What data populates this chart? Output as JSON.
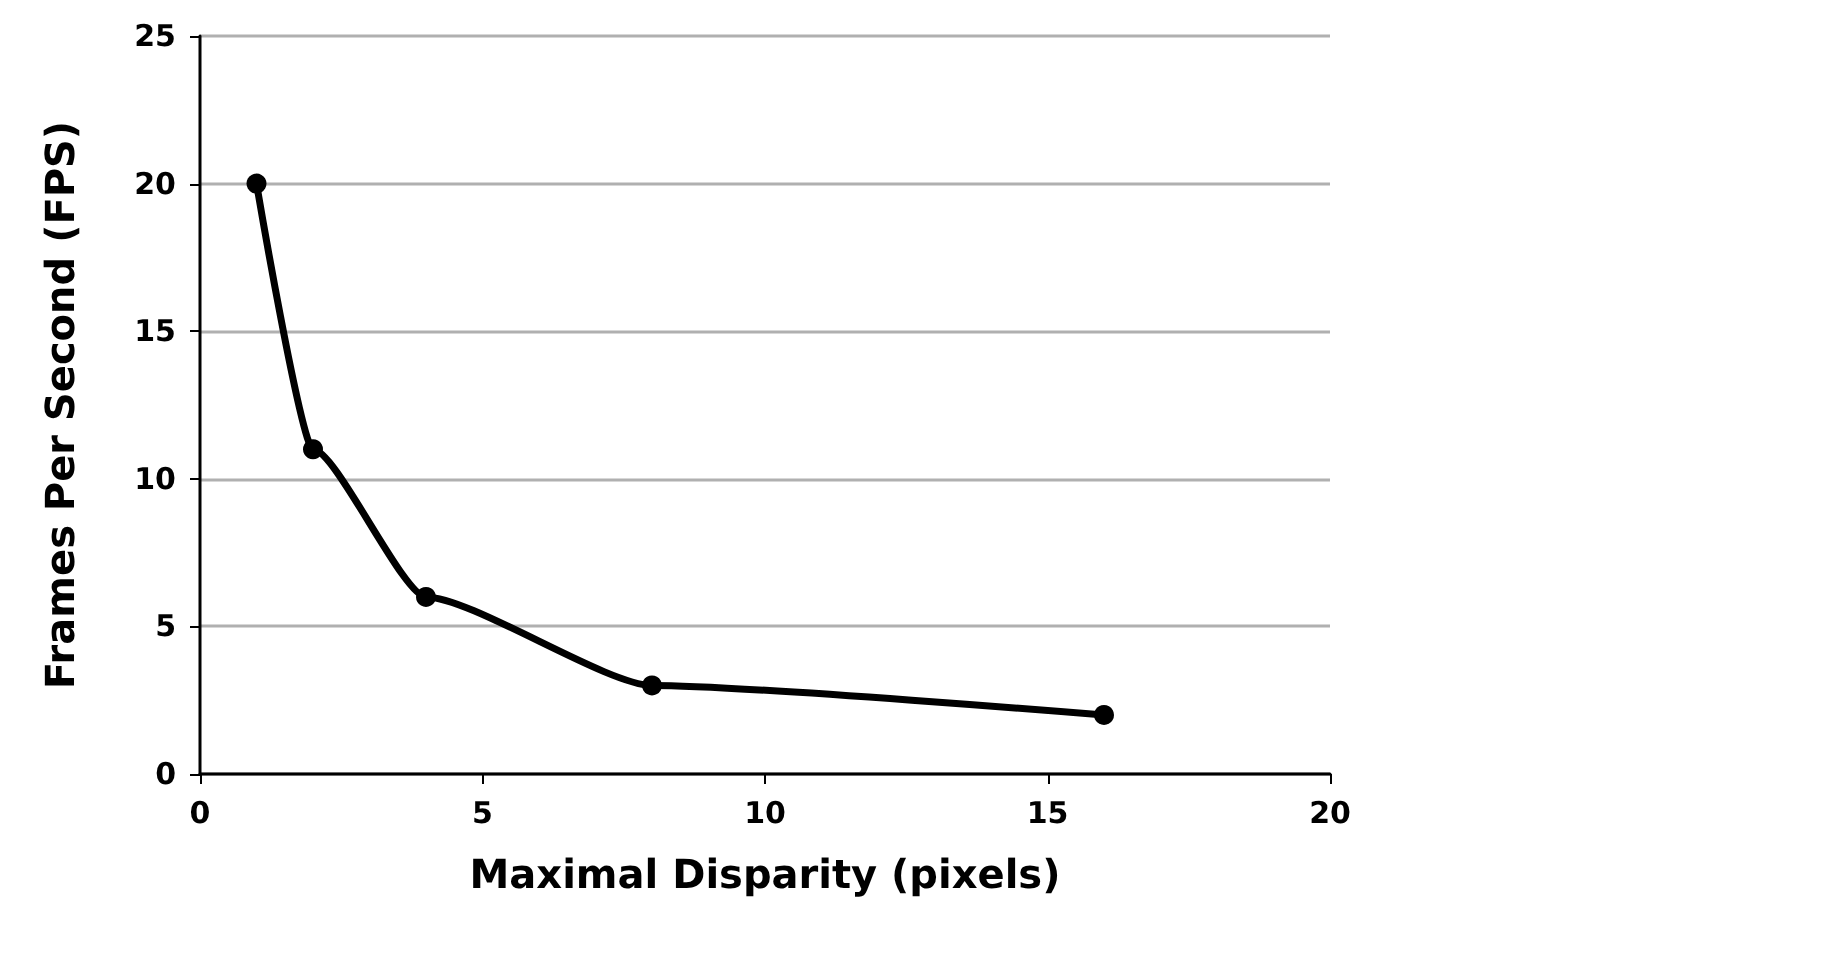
{
  "chart_data": {
    "type": "line",
    "xlabel": "Maximal Disparity (pixels)",
    "ylabel": "Frames Per Second (FPS)",
    "x": [
      1,
      2,
      4,
      8,
      16
    ],
    "series": [
      {
        "color": "#000000",
        "values": [
          20,
          11,
          6,
          3,
          2
        ]
      }
    ],
    "xlim": [
      0,
      20
    ],
    "xticks": [
      0,
      5,
      10,
      15,
      20
    ],
    "ylim": [
      0,
      25
    ],
    "yticks": [
      0,
      5,
      10,
      15,
      20,
      25
    ],
    "grid": "y",
    "marker": "circle",
    "line_style": "solid"
  }
}
